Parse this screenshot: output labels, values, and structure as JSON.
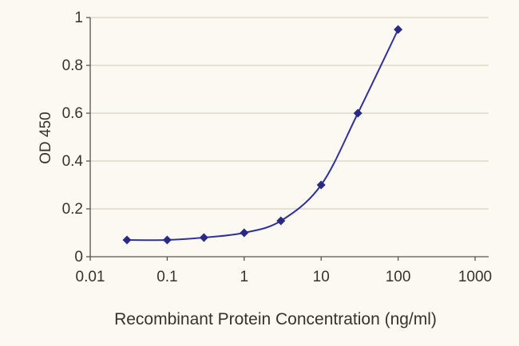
{
  "chart_data": {
    "type": "line",
    "title": "",
    "xlabel": "Recombinant Protein Concentration (ng/ml)",
    "ylabel": "OD 450",
    "x_scale": "log",
    "xlim": [
      0.01,
      1000
    ],
    "ylim": [
      0,
      1
    ],
    "x_ticks": [
      0.01,
      0.1,
      1,
      10,
      100,
      1000
    ],
    "x_tick_labels": [
      "0.01",
      "0.1",
      "1",
      "10",
      "100",
      "1000"
    ],
    "y_ticks": [
      0,
      0.2,
      0.4,
      0.6,
      0.8,
      1
    ],
    "y_tick_labels": [
      "0",
      "0.2",
      "0.4",
      "0.6",
      "0.8",
      "1"
    ],
    "grid": "horizontal",
    "legend": "none",
    "marker": "diamond",
    "x": [
      0.03,
      0.1,
      0.3,
      1,
      3,
      10,
      30,
      100
    ],
    "y": [
      0.07,
      0.07,
      0.08,
      0.1,
      0.15,
      0.3,
      0.6,
      0.95
    ],
    "colors": {
      "line": "#31319b",
      "marker": "#2a2a84",
      "grid": "#d8d1bf",
      "axis": "#56544b",
      "text": "#35342c",
      "background": "#fbf9f2"
    }
  }
}
